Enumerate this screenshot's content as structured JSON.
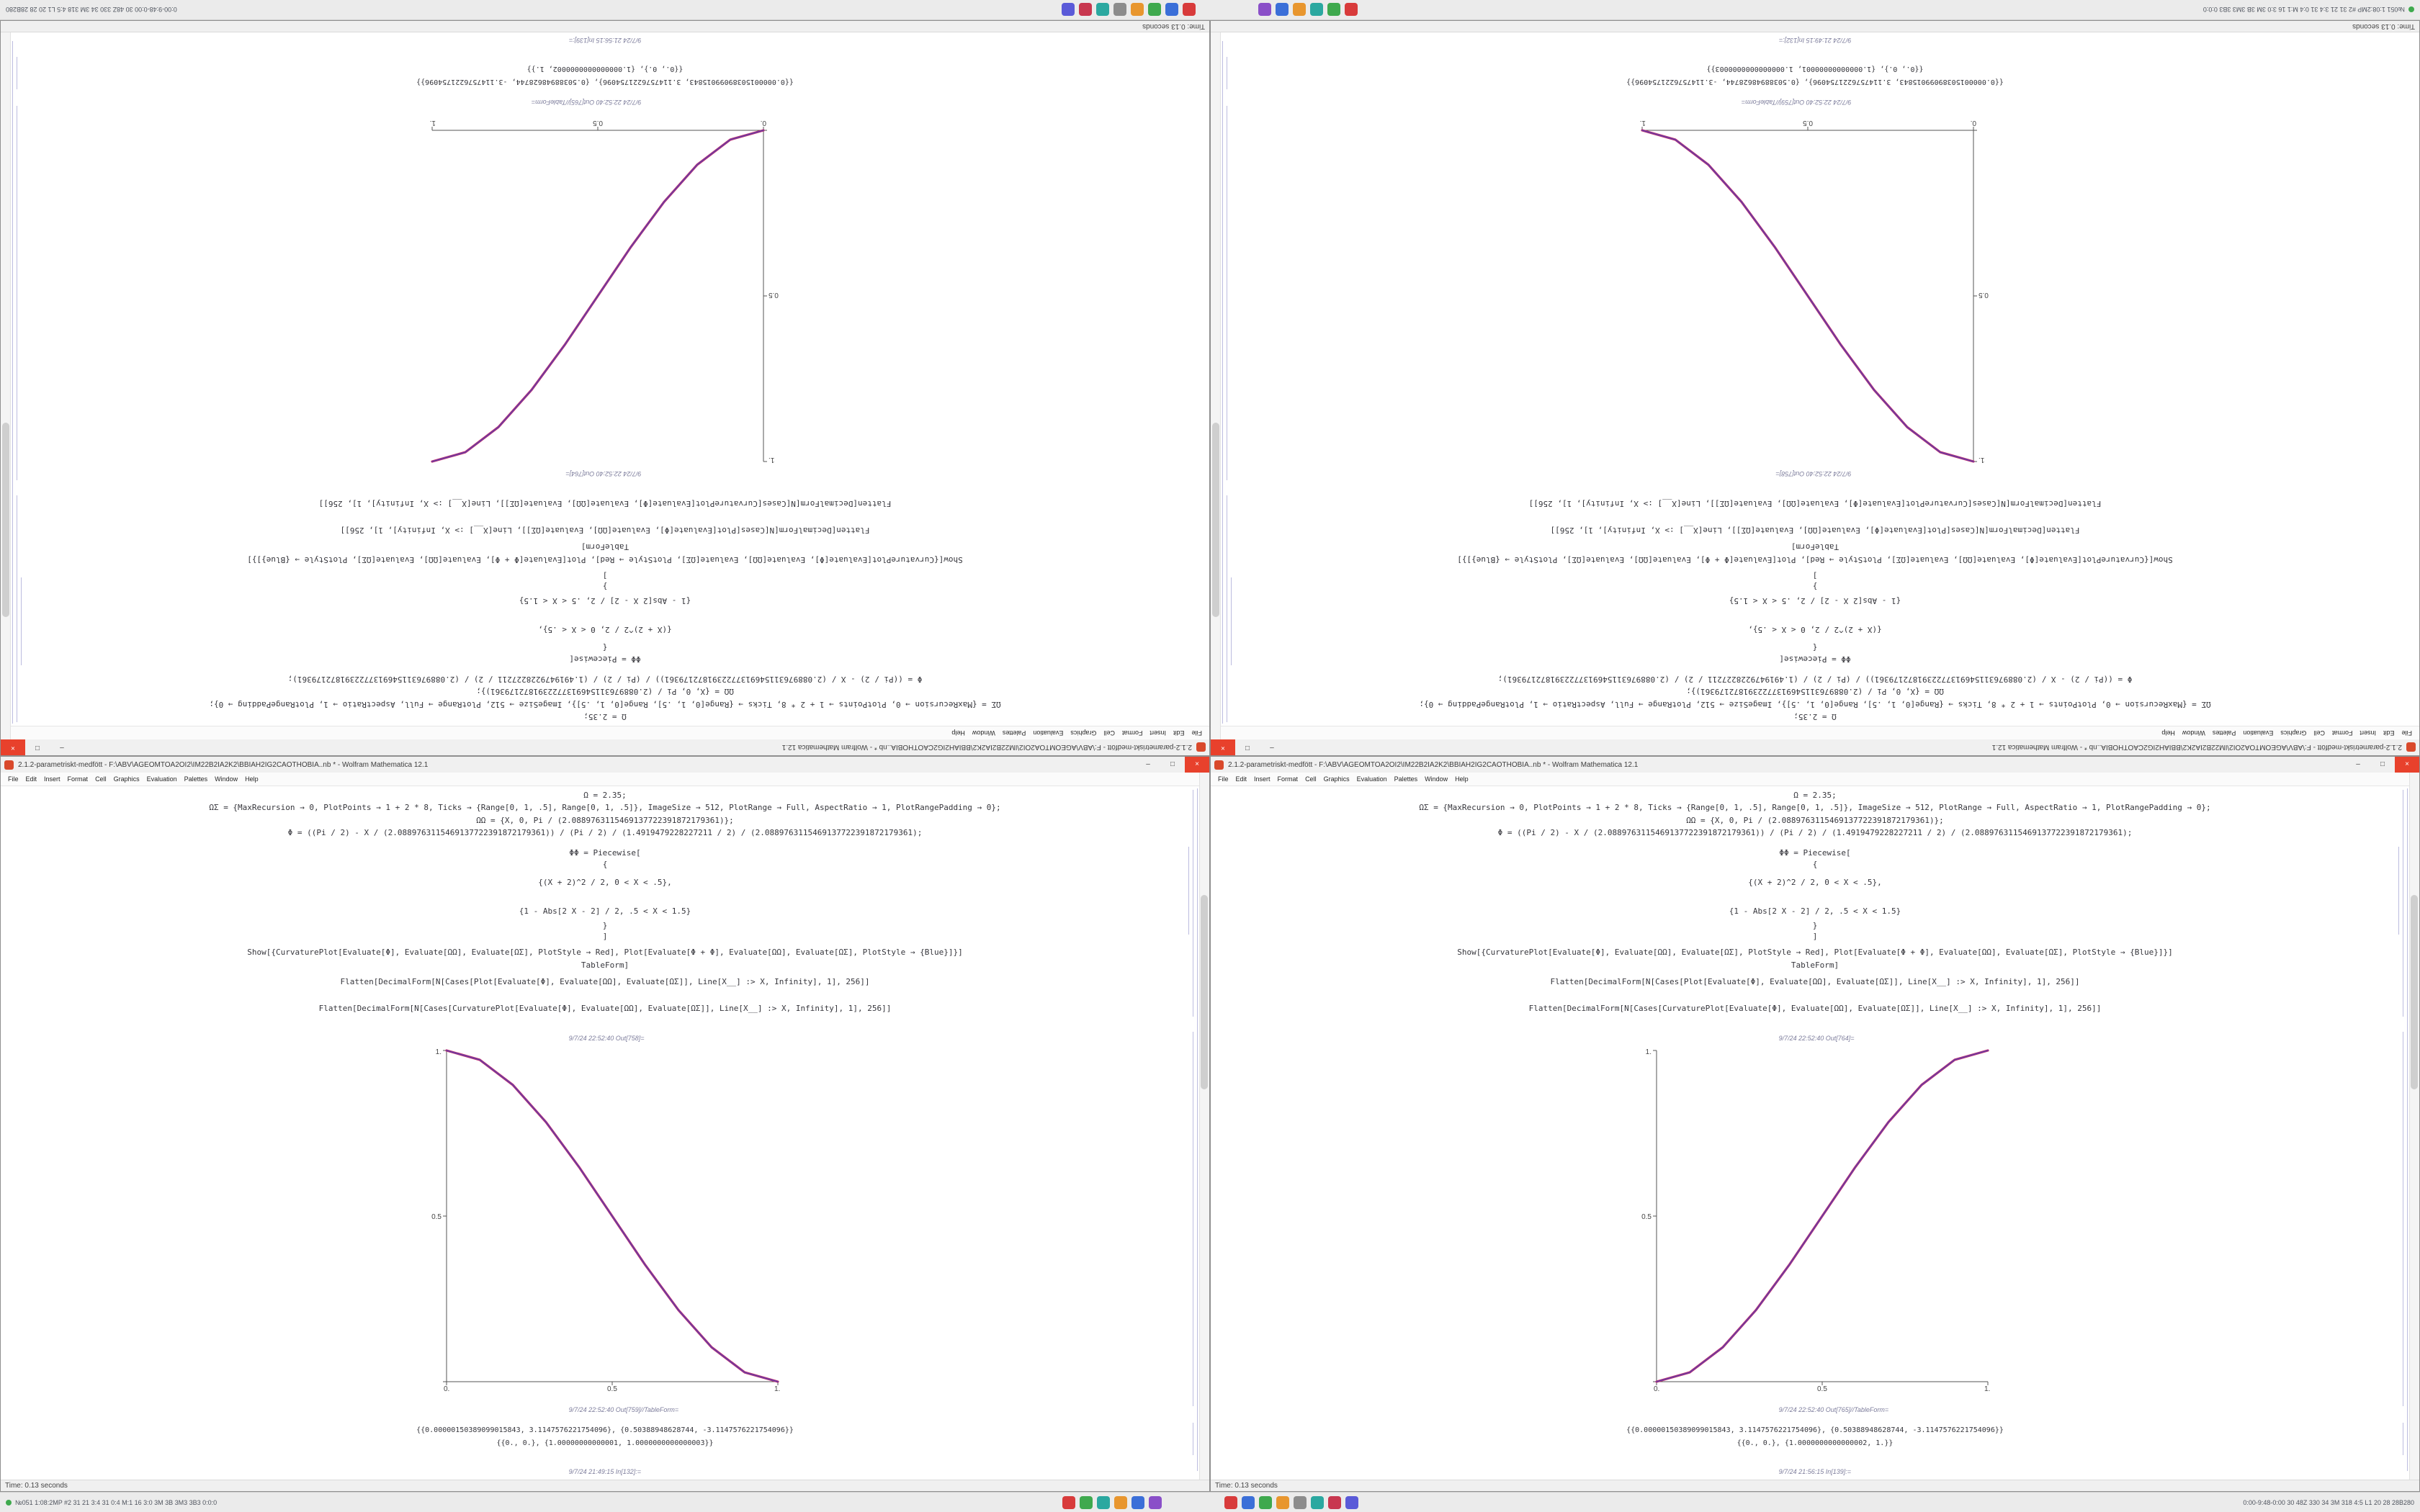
{
  "window_title": "2.1.2-parametriskt-medfött - F:\\ABV\\AGEOMTOA2OI2\\IM22B2IA2K2\\BBIAH2IG2CAOTHOBIA..nb * - Wolfram Mathematica 12.1",
  "menu": [
    "File",
    "Edit",
    "Insert",
    "Format",
    "Cell",
    "Graphics",
    "Evaluation",
    "Palettes",
    "Window",
    "Help"
  ],
  "controls": {
    "minimize": "–",
    "maximize": "□",
    "close": "×"
  },
  "cells": [
    "Ω = 2.35;",
    "ΩΣ = {MaxRecursion → 0, PlotPoints → 1 + 2 * 8, Ticks → {Range[0, 1, .5], Range[0, 1, .5]}, ImageSize → 512, PlotRange → Full, AspectRatio → 1, PlotRangePadding → 0};",
    "ΩΩ = {X, 0, Pi / (2.0889763115469137722391872179361)};",
    "Φ = ((Pi / 2) - X / (2.0889763115469137722391872179361)) / (Pi / 2) / (1.4919479228227211 / 2) / (2.0889763115469137722391872179361);",
    "ΦΦ = Piecewise[",
    "{",
    "{(X + 2)^2 / 2, 0 < X < .5},",
    "{1 - Abs[2 X - 2] / 2, .5 < X < 1.5}",
    "}",
    "]",
    "Show[{CurvaturePlot[Evaluate[Φ], Evaluate[ΩΩ], Evaluate[ΩΣ], PlotStyle → Red], Plot[Evaluate[Φ + Φ], Evaluate[ΩΩ], Evaluate[ΩΣ], PlotStyle → {Blue}]}]",
    "TableForm]",
    "Flatten[DecimalForm[N[Cases[Plot[Evaluate[Φ], Evaluate[ΩΩ], Evaluate[ΩΣ]], Line[X__] :> X, Infinity], 1], 256]]",
    "Flatten[DecimalForm[N[Cases[CurvaturePlot[Evaluate[Φ], Evaluate[ΩΩ], Evaluate[ΩΣ]], Line[X__] :> X, Infinity], 1], 256]]"
  ],
  "window_left": {
    "out_label_plot": "9/7/24 22:52:40 Out[758]=",
    "out_label_table": "9/7/24 22:52:40 Out[759]//TableForm=",
    "table_lines": [
      "{{0.00000150389099015843, 3.1147576221754096}, {0.50388948628744, -3.1147576221754096}}",
      "{{0., 0.}, {1.00000000000001, 1.0000000000000003}}"
    ],
    "in_label": "9/7/24 21:49:15 In[132]:=",
    "status_time": "Time: 0.13 seconds",
    "plot": {
      "type": "line",
      "direction": "descending",
      "x_ticks": [
        "0.",
        "0.5",
        "1."
      ],
      "y_ticks": [
        "0.5",
        "1."
      ],
      "x_range": [
        0,
        1
      ],
      "y_range": [
        0,
        1
      ],
      "colors": [
        "#c22a6e",
        "#4a44b4"
      ],
      "points": [
        [
          0,
          1
        ],
        [
          0.1,
          0.972
        ],
        [
          0.2,
          0.896
        ],
        [
          0.3,
          0.784
        ],
        [
          0.4,
          0.648
        ],
        [
          0.5,
          0.5
        ],
        [
          0.6,
          0.352
        ],
        [
          0.7,
          0.216
        ],
        [
          0.8,
          0.104
        ],
        [
          0.9,
          0.028
        ],
        [
          1,
          0
        ]
      ]
    }
  },
  "window_right": {
    "out_label_plot": "9/7/24 22:52:40 Out[764]=",
    "out_label_table": "9/7/24 22:52:40 Out[765]//TableForm=",
    "table_lines": [
      "{{0.00000150389099015843, 3.1147576221754096}, {0.50388948628744, -3.1147576221754096}}",
      "{{0., 0.}, {1.0000000000000002, 1.}}"
    ],
    "in_label": "9/7/24 21:56:15 In[139]:=",
    "status_time": "Time: 0.13 seconds",
    "plot": {
      "type": "line",
      "direction": "ascending",
      "x_ticks": [
        "0.",
        "0.5",
        "1."
      ],
      "y_ticks": [
        "0.5",
        "1."
      ],
      "x_range": [
        0,
        1
      ],
      "y_range": [
        0,
        1
      ],
      "colors": [
        "#c22a6e",
        "#4a44b4"
      ],
      "points": [
        [
          0,
          0
        ],
        [
          0.1,
          0.028
        ],
        [
          0.2,
          0.104
        ],
        [
          0.3,
          0.216
        ],
        [
          0.4,
          0.352
        ],
        [
          0.5,
          0.5
        ],
        [
          0.6,
          0.648
        ],
        [
          0.7,
          0.784
        ],
        [
          0.8,
          0.896
        ],
        [
          0.9,
          0.972
        ],
        [
          1,
          1
        ]
      ]
    }
  },
  "taskbar": {
    "left_status": "№051  1:08:2MP #2 31 21 3:4 31 0:4 M:1 16 3:0 3M 3B 3M3 3B3 0:0:0",
    "right_status": "0:00-9:48-0:00 30 48Z 330 34 3M 318 4:5 L1 20 28 28B280",
    "icons_a": [
      "#d83b3b",
      "#3fa94e",
      "#2ba8a0",
      "#e8962e",
      "#3b6fd8",
      "#8a4fc8"
    ],
    "icons_b": [
      "#d83b3b",
      "#3b6fd8",
      "#3fa94e",
      "#e8962e",
      "#8c8c8c",
      "#2ba8a0",
      "#c8374f",
      "#5a5ad8"
    ]
  }
}
